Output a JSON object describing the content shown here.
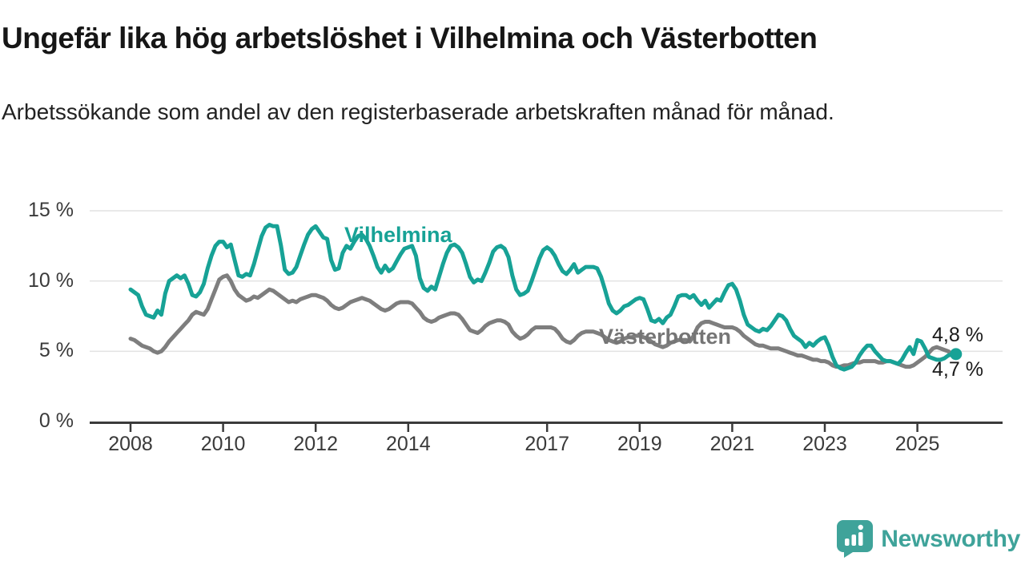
{
  "header": {
    "title": "Ungefär lika hög arbetslöshet i Vilhelmina och Västerbotten",
    "subtitle": "Arbetssökande som andel av den registerbaserade arbetskraften månad för månad."
  },
  "chart_data": {
    "type": "line",
    "unit": "%",
    "x_start": "2008-01",
    "x_end": "2025-11",
    "points_per_year": 12,
    "ylim": [
      0,
      15
    ],
    "grid": "horizontal",
    "grid_color": "#e2e2e2",
    "axis_color": "#3a3a3a",
    "yticks": [
      {
        "value": 0,
        "label": "0 %"
      },
      {
        "value": 5,
        "label": "5 %"
      },
      {
        "value": 10,
        "label": "10 %"
      },
      {
        "value": 15,
        "label": "15 %"
      }
    ],
    "xticks": [
      {
        "year": 2008,
        "label": "2008"
      },
      {
        "year": 2010,
        "label": "2010"
      },
      {
        "year": 2012,
        "label": "2012"
      },
      {
        "year": 2014,
        "label": "2014"
      },
      {
        "year": 2017,
        "label": "2017"
      },
      {
        "year": 2019,
        "label": "2019"
      },
      {
        "year": 2021,
        "label": "2021"
      },
      {
        "year": 2023,
        "label": "2023"
      },
      {
        "year": 2025,
        "label": "2025"
      }
    ],
    "series": [
      {
        "name": "Västerbotten",
        "color": "#7e7e7e",
        "label_color": "#757575",
        "end_label": "4,7 %",
        "end_dot": false,
        "values": [
          5.9,
          5.8,
          5.6,
          5.4,
          5.3,
          5.2,
          5.0,
          4.9,
          5.0,
          5.3,
          5.7,
          6.0,
          6.3,
          6.6,
          6.9,
          7.2,
          7.6,
          7.8,
          7.7,
          7.6,
          8.0,
          8.7,
          9.4,
          10.1,
          10.3,
          10.4,
          10.0,
          9.4,
          9.0,
          8.8,
          8.6,
          8.7,
          8.9,
          8.8,
          9.0,
          9.2,
          9.4,
          9.3,
          9.1,
          8.9,
          8.7,
          8.5,
          8.6,
          8.5,
          8.7,
          8.8,
          8.9,
          9.0,
          9.0,
          8.9,
          8.8,
          8.6,
          8.3,
          8.1,
          8.0,
          8.1,
          8.3,
          8.5,
          8.6,
          8.7,
          8.8,
          8.7,
          8.6,
          8.4,
          8.2,
          8.0,
          7.9,
          8.0,
          8.2,
          8.4,
          8.5,
          8.5,
          8.5,
          8.4,
          8.1,
          7.8,
          7.4,
          7.2,
          7.1,
          7.2,
          7.4,
          7.5,
          7.6,
          7.7,
          7.7,
          7.6,
          7.3,
          6.9,
          6.5,
          6.4,
          6.3,
          6.5,
          6.8,
          7.0,
          7.1,
          7.2,
          7.2,
          7.1,
          6.9,
          6.4,
          6.1,
          5.9,
          6.0,
          6.2,
          6.5,
          6.7,
          6.7,
          6.7,
          6.7,
          6.7,
          6.6,
          6.3,
          5.9,
          5.7,
          5.6,
          5.8,
          6.1,
          6.3,
          6.4,
          6.4,
          6.4,
          6.3,
          6.2,
          6.0,
          5.8,
          5.7,
          5.6,
          5.7,
          5.9,
          6.0,
          6.0,
          6.1,
          6.1,
          6.0,
          5.9,
          5.7,
          5.5,
          5.4,
          5.3,
          5.4,
          5.6,
          5.7,
          5.8,
          5.8,
          5.8,
          5.7,
          6.1,
          6.7,
          7.0,
          7.1,
          7.1,
          7.0,
          6.9,
          6.8,
          6.7,
          6.7,
          6.7,
          6.6,
          6.4,
          6.1,
          5.9,
          5.7,
          5.5,
          5.4,
          5.4,
          5.3,
          5.2,
          5.2,
          5.2,
          5.1,
          5.0,
          4.9,
          4.8,
          4.7,
          4.7,
          4.6,
          4.5,
          4.4,
          4.4,
          4.3,
          4.3,
          4.2,
          4.0,
          3.9,
          3.9,
          4.0,
          4.0,
          4.1,
          4.2,
          4.2,
          4.3,
          4.3,
          4.3,
          4.3,
          4.2,
          4.2,
          4.3,
          4.3,
          4.2,
          4.1,
          4.0,
          3.9,
          3.9,
          4.0,
          4.2,
          4.4,
          4.6,
          4.9,
          5.2,
          5.3,
          5.2,
          5.1,
          5.0,
          4.8,
          4.7
        ]
      },
      {
        "name": "Vilhelmina",
        "color": "#17a296",
        "label_color": "#17a296",
        "end_label": "4,8 %",
        "end_dot": true,
        "values": [
          9.4,
          9.2,
          9.0,
          8.2,
          7.6,
          7.5,
          7.4,
          7.9,
          7.6,
          9.1,
          10.0,
          10.2,
          10.4,
          10.2,
          10.4,
          9.8,
          9.0,
          8.9,
          9.2,
          9.8,
          10.9,
          11.8,
          12.5,
          12.8,
          12.8,
          12.4,
          12.6,
          11.5,
          10.4,
          10.3,
          10.5,
          10.4,
          11.2,
          12.2,
          13.2,
          13.8,
          14.0,
          13.9,
          13.9,
          12.5,
          10.8,
          10.5,
          10.6,
          11.0,
          11.8,
          12.6,
          13.3,
          13.7,
          13.9,
          13.5,
          13.1,
          13.0,
          11.5,
          10.8,
          10.9,
          12.0,
          12.5,
          12.3,
          12.8,
          13.2,
          13.3,
          13.0,
          12.5,
          11.8,
          11.0,
          10.6,
          11.1,
          10.7,
          10.9,
          11.4,
          11.9,
          12.3,
          12.4,
          12.5,
          11.8,
          10.2,
          9.5,
          9.3,
          9.6,
          9.4,
          10.3,
          11.2,
          12.0,
          12.5,
          12.6,
          12.4,
          12.0,
          11.2,
          10.3,
          9.9,
          10.1,
          10.0,
          10.6,
          11.3,
          12.1,
          12.4,
          12.5,
          12.3,
          11.7,
          10.4,
          9.4,
          9.0,
          9.1,
          9.3,
          10.0,
          10.8,
          11.6,
          12.2,
          12.4,
          12.2,
          11.8,
          11.2,
          10.7,
          10.5,
          10.8,
          11.2,
          10.6,
          10.8,
          11.0,
          11.0,
          11.0,
          10.9,
          10.3,
          9.4,
          8.4,
          7.9,
          7.7,
          7.9,
          8.2,
          8.3,
          8.5,
          8.7,
          8.8,
          8.7,
          8.0,
          7.2,
          7.1,
          7.3,
          7.0,
          7.4,
          7.6,
          8.2,
          8.9,
          9.0,
          9.0,
          8.8,
          9.0,
          8.6,
          8.3,
          8.6,
          8.1,
          8.4,
          8.7,
          8.6,
          9.2,
          9.7,
          9.8,
          9.4,
          8.6,
          7.6,
          6.9,
          6.7,
          6.5,
          6.4,
          6.6,
          6.5,
          6.8,
          7.2,
          7.6,
          7.5,
          7.2,
          6.6,
          6.1,
          5.9,
          5.7,
          5.3,
          5.6,
          5.4,
          5.7,
          5.9,
          6.0,
          5.4,
          4.6,
          4.0,
          3.8,
          3.7,
          3.8,
          3.9,
          4.2,
          4.7,
          5.1,
          5.4,
          5.4,
          5.0,
          4.7,
          4.4,
          4.3,
          4.3,
          4.2,
          4.1,
          4.4,
          4.9,
          5.3,
          4.8,
          5.8,
          5.7,
          5.2,
          4.6,
          4.5,
          4.4,
          4.4,
          4.5,
          4.7,
          4.8,
          4.8
        ]
      }
    ]
  },
  "footer": {
    "brand": "Newsworthy",
    "brand_color": "#3fa39a",
    "logo_icon": "bar-chart-speech-bubble"
  }
}
